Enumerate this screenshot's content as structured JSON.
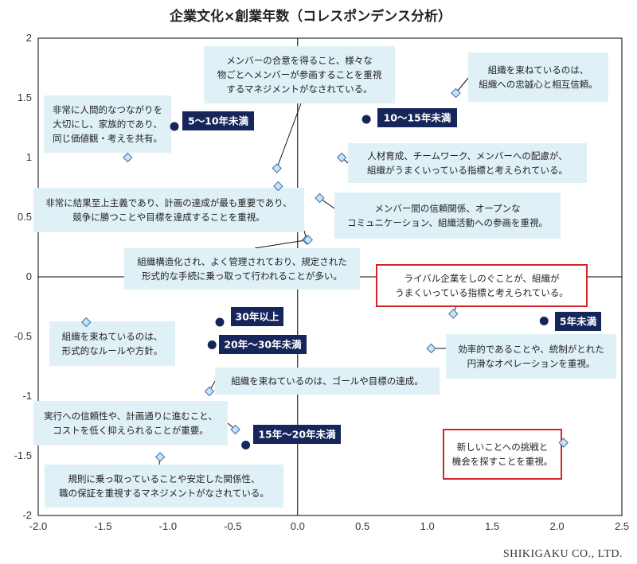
{
  "title": "企業文化×創業年数（コレスポンデンス分析）",
  "credit": "SHIKIGAKU CO., LTD.",
  "chart_data": {
    "type": "scatter",
    "title": "企業文化×創業年数（コレスポンデンス分析）",
    "xlim": [
      -2.0,
      2.5
    ],
    "ylim": [
      -2,
      2
    ],
    "x_ticks": [
      "-2.0",
      "-1.5",
      "-1.0",
      "-0.5",
      "0.0",
      "0.5",
      "1.0",
      "1.5",
      "2.0",
      "2.5"
    ],
    "y_ticks": [
      "2",
      "1.5",
      "1",
      "0.5",
      "0",
      "-0.5",
      "-1",
      "-1.5",
      "-2"
    ],
    "grid": false,
    "series": [
      {
        "name": "創業年数",
        "marker": "circle",
        "color": "#1b2a5c",
        "points": [
          {
            "x": 0.53,
            "y": 1.32,
            "label": "10〜15年未満"
          },
          {
            "x": -0.95,
            "y": 1.26,
            "label": "5〜10年未満"
          },
          {
            "x": -0.6,
            "y": -0.38,
            "label": "30年以上"
          },
          {
            "x": -0.66,
            "y": -0.57,
            "label": "20年〜30年未満"
          },
          {
            "x": 1.9,
            "y": -0.37,
            "label": "5年未満"
          },
          {
            "x": -0.4,
            "y": -1.41,
            "label": "15年〜20年未満"
          }
        ]
      },
      {
        "name": "企業文化",
        "marker": "diamond",
        "color": "#c9e3f2",
        "points": [
          {
            "x": 1.22,
            "y": 1.54,
            "label": "組織を束ねているのは、\n組織への忠誠心と相互信頼。"
          },
          {
            "x": -0.16,
            "y": 0.91,
            "label": "メンバーの合意を得ること、様々な\n物ごとへメンバーが参画することを重視\nするマネジメントがなされている。"
          },
          {
            "x": -1.31,
            "y": 1.0,
            "label": "非常に人間的なつながりを\n大切にし、家族的であり、\n同じ価値観・考えを共有。"
          },
          {
            "x": 0.34,
            "y": 1.0,
            "label": "人材育成、チームワーク、メンバーへの配慮が、\n組織がうまくいっている指標と考えられている。"
          },
          {
            "x": -0.15,
            "y": 0.76,
            "label": ""
          },
          {
            "x": 0.17,
            "y": 0.66,
            "label": "メンバー間の信頼関係、オープンな\nコミュニケーション、組織活動への参画を重視。"
          },
          {
            "x": 0.07,
            "y": 0.31,
            "label": "非常に結果至上主義であり、計画の達成が最も重要であり、\n競争に勝つことや目標を達成することを重視。"
          },
          {
            "x": 1.2,
            "y": -0.31,
            "label": "ライバル企業をしのぐことが、組織が\nうまくいっている指標と考えられている。",
            "highlight": true
          },
          {
            "x": -1.63,
            "y": -0.38,
            "label": "組織を束ねているのは、\n形式的なルールや方針。"
          },
          {
            "x": 1.03,
            "y": -0.6,
            "label": "効率的であることや、統制がとれた\n円滑なオペレーションを重視。"
          },
          {
            "x": -0.68,
            "y": -0.96,
            "label": "組織を束ねているのは、ゴールや目標の達成。"
          },
          {
            "x": -0.48,
            "y": -1.28,
            "label": "実行への信頼性や、計画通りに進むこと、\nコストを低く抑えられることが重要。"
          },
          {
            "x": -1.06,
            "y": -1.51,
            "label": "規則に乗っ取っていることや安定した関係性、\n職の保証を重視するマネジメントがなされている。"
          },
          {
            "x": 2.05,
            "y": -1.39,
            "label": "新しいことへの挑戦と\n機会を探すことを重視。",
            "highlight": true
          },
          {
            "x": 0.08,
            "y": 0.31,
            "label": "組織構造化され、よく管理されており、規定された\n形式的な手続に乗っ取って行われることが多い。"
          }
        ]
      }
    ]
  },
  "colors": {
    "note_bg": "#dff0f7",
    "group_bg": "#16255a",
    "highlight_border": "#d4252a",
    "axis": "#000000"
  }
}
